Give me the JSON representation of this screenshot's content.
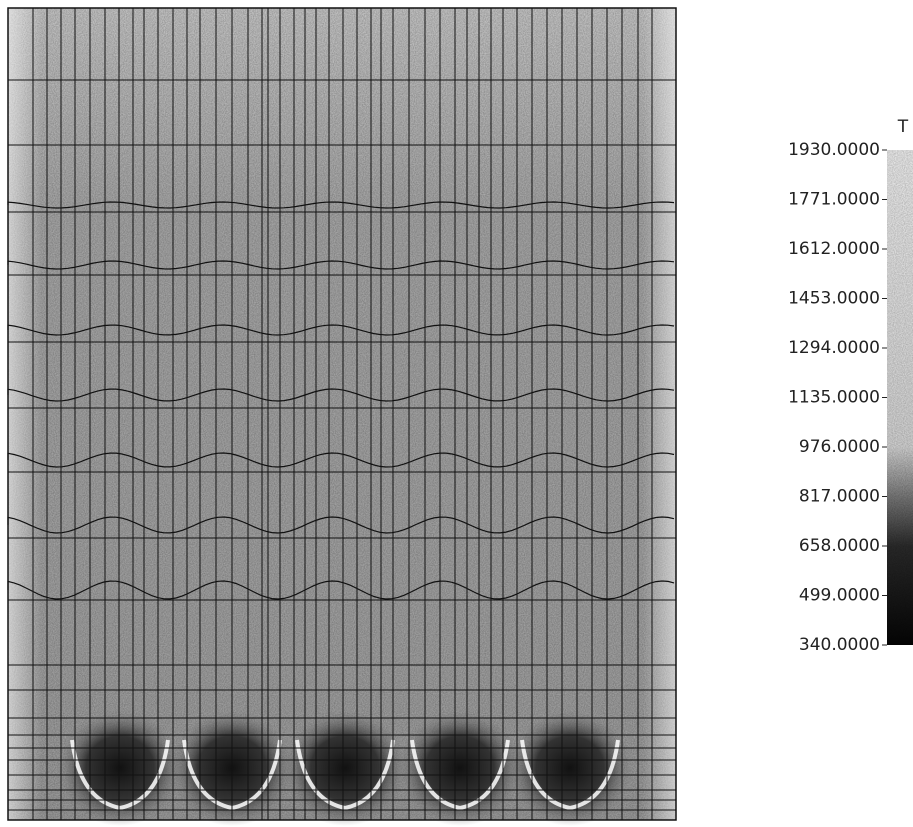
{
  "chart_data": {
    "type": "contour",
    "colorbar_title": "T",
    "clim": [
      340,
      1930
    ],
    "cticks": [
      {
        "value": 1930,
        "label": "1930.0000"
      },
      {
        "value": 1771,
        "label": "1771.0000"
      },
      {
        "value": 1612,
        "label": "1612.0000"
      },
      {
        "value": 1453,
        "label": "1453.0000"
      },
      {
        "value": 1294,
        "label": "1294.0000"
      },
      {
        "value": 1135,
        "label": "1135.0000"
      },
      {
        "value": 976,
        "label": "976.0000"
      },
      {
        "value": 817,
        "label": "817.0000"
      },
      {
        "value": 658,
        "label": "658.0000"
      },
      {
        "value": 499,
        "label": "499.0000"
      },
      {
        "value": 340,
        "label": "340.0000"
      }
    ]
  }
}
